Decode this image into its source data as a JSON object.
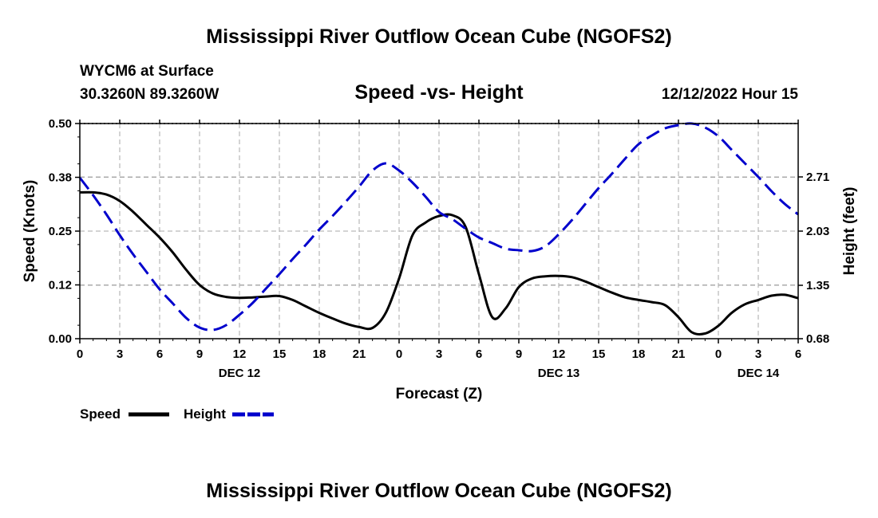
{
  "chart_data": {
    "type": "line",
    "title": "Mississippi River Outflow Ocean Cube (NGOFS2)",
    "station": "WYCM6 at Surface",
    "location": "30.3260N  89.3260W",
    "subtitle": "Speed -vs- Height",
    "datetime": "12/12/2022 Hour 15",
    "xlabel": "Forecast (Z)",
    "ylabel": "Speed (Knots)",
    "y2label": "Height (feet)",
    "x_hours_range": [
      0,
      54
    ],
    "x_tick_labels": [
      "0",
      "3",
      "6",
      "9",
      "12",
      "15",
      "18",
      "21",
      "0",
      "3",
      "6",
      "9",
      "12",
      "15",
      "18",
      "21",
      "0",
      "3",
      "6"
    ],
    "date_labels": [
      {
        "label": "DEC 12",
        "hour": 12
      },
      {
        "label": "DEC 13",
        "hour": 36
      },
      {
        "label": "DEC 14",
        "hour": 51
      }
    ],
    "ylim": [
      0,
      0.5
    ],
    "y_ticks": [
      "0.00",
      "0.12",
      "0.25",
      "0.38",
      "0.50"
    ],
    "y2lim": [
      0.68,
      3.38
    ],
    "y2_ticks": [
      "0.68",
      "1.35",
      "2.03",
      "2.71"
    ],
    "series": [
      {
        "name": "Speed",
        "axis": "left",
        "color": "#000000",
        "style": "solid",
        "x": [
          0,
          1,
          2,
          3,
          4,
          5,
          6,
          7,
          8,
          9,
          10,
          11,
          12,
          13,
          14,
          15,
          16,
          17,
          18,
          19,
          20,
          21,
          22,
          23,
          24,
          25,
          26,
          27,
          28,
          29,
          30,
          31,
          32,
          33,
          34,
          35,
          36,
          37,
          38,
          39,
          40,
          41,
          42,
          43,
          44,
          45,
          46,
          47,
          48,
          49,
          50,
          51,
          52,
          53,
          54
        ],
        "values": [
          0.34,
          0.34,
          0.335,
          0.32,
          0.295,
          0.265,
          0.235,
          0.2,
          0.16,
          0.125,
          0.105,
          0.097,
          0.095,
          0.096,
          0.098,
          0.099,
          0.09,
          0.075,
          0.06,
          0.047,
          0.035,
          0.027,
          0.025,
          0.06,
          0.14,
          0.24,
          0.27,
          0.285,
          0.287,
          0.26,
          0.15,
          0.05,
          0.07,
          0.12,
          0.14,
          0.145,
          0.146,
          0.143,
          0.133,
          0.12,
          0.107,
          0.096,
          0.09,
          0.085,
          0.078,
          0.05,
          0.015,
          0.012,
          0.03,
          0.06,
          0.08,
          0.09,
          0.1,
          0.102,
          0.094
        ]
      },
      {
        "name": "Height",
        "axis": "right",
        "color": "#0000cc",
        "style": "dashed",
        "x": [
          0,
          1,
          2,
          3,
          4,
          5,
          6,
          7,
          8,
          9,
          10,
          11,
          12,
          13,
          14,
          15,
          16,
          17,
          18,
          19,
          20,
          21,
          22,
          23,
          24,
          25,
          26,
          27,
          28,
          29,
          30,
          31,
          32,
          33,
          34,
          35,
          36,
          37,
          38,
          39,
          40,
          41,
          42,
          43,
          44,
          45,
          46,
          47,
          48,
          49,
          50,
          51,
          52,
          53,
          54
        ],
        "values": [
          2.7,
          2.48,
          2.24,
          1.98,
          1.74,
          1.52,
          1.3,
          1.12,
          0.94,
          0.82,
          0.79,
          0.85,
          0.98,
          1.13,
          1.31,
          1.49,
          1.68,
          1.86,
          2.05,
          2.22,
          2.4,
          2.59,
          2.79,
          2.88,
          2.79,
          2.64,
          2.46,
          2.27,
          2.18,
          2.06,
          1.95,
          1.88,
          1.81,
          1.79,
          1.78,
          1.84,
          1.99,
          2.17,
          2.37,
          2.57,
          2.75,
          2.94,
          3.12,
          3.23,
          3.32,
          3.36,
          3.38,
          3.33,
          3.22,
          3.05,
          2.88,
          2.71,
          2.53,
          2.37,
          2.24
        ]
      }
    ],
    "legend": [
      {
        "label": "Speed",
        "color": "#000000",
        "style": "solid"
      },
      {
        "label": "Height",
        "color": "#0000cc",
        "style": "dashed"
      }
    ],
    "grid": true,
    "legend_position": "bottom-left"
  },
  "footer_title": "Mississippi River Outflow Ocean Cube (NGOFS2)"
}
